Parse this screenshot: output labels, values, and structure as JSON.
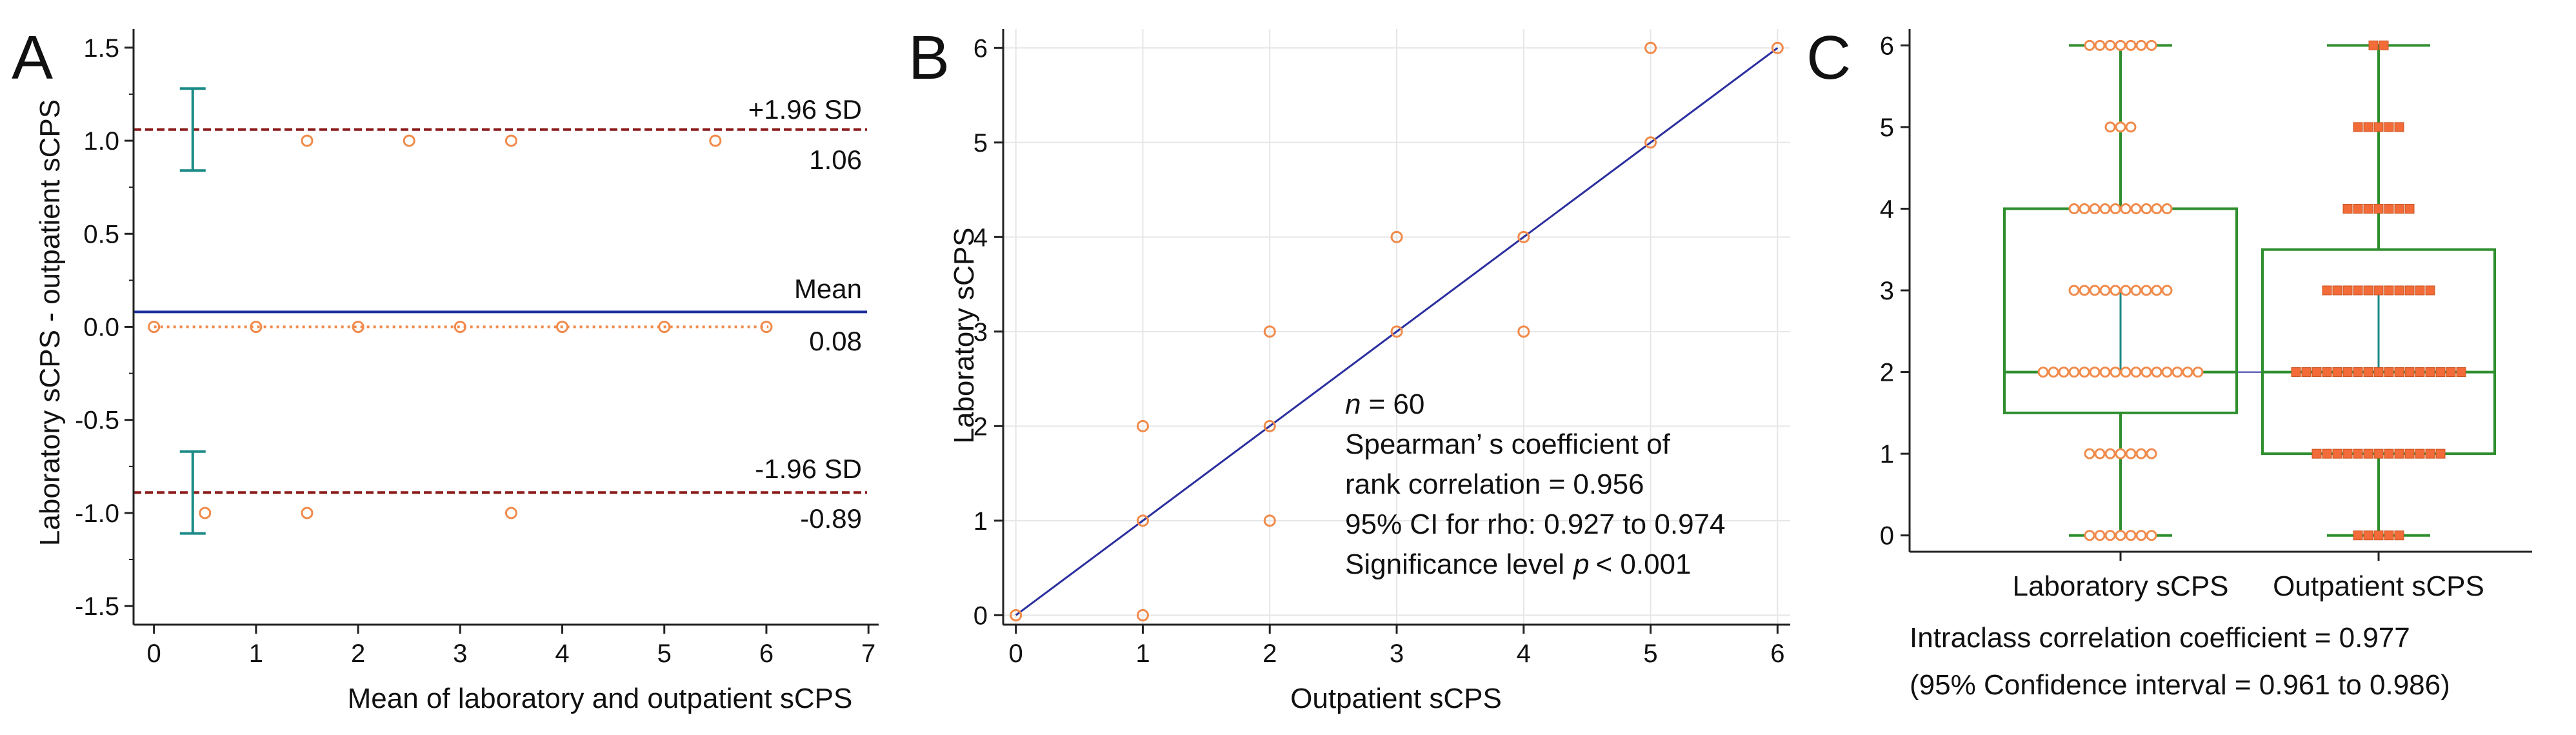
{
  "colors": {
    "axis": "#222222",
    "marker": "#f08a4b",
    "marker_fill_c2": "#f26b38",
    "limit_line": "#8b1a1a",
    "mean_line": "#1f2f9c",
    "ci_bar": "#1b8a86",
    "box": "#2f8f2f",
    "fit_line": "#2b2f9e",
    "grid": "#e6e6e6"
  },
  "chart_data": [
    {
      "type": "scatter",
      "panel_label": "A",
      "title": "",
      "xlabel": "Mean of laboratory and outpatient sCPS",
      "ylabel": "Laboratory sCPS - outpatient sCPS",
      "xlim": [
        -0.2,
        7.1
      ],
      "ylim": [
        -1.6,
        1.6
      ],
      "xticks": [
        0,
        1,
        2,
        3,
        4,
        5,
        6,
        7
      ],
      "yticks": [
        1.5,
        1.0,
        0.5,
        0.0,
        -0.5,
        -1.0,
        -1.5
      ],
      "ytick_labels": [
        "1.5",
        "1.0",
        "0.5",
        "0.0",
        "-0.5",
        "-1.0",
        "-1.5"
      ],
      "grid": false,
      "points": [
        {
          "x": 1.5,
          "y": 1.0
        },
        {
          "x": 2.5,
          "y": 1.0
        },
        {
          "x": 3.5,
          "y": 1.0
        },
        {
          "x": 5.5,
          "y": 1.0
        },
        {
          "x": 0,
          "y": 0.0
        },
        {
          "x": 1,
          "y": 0.0
        },
        {
          "x": 2,
          "y": 0.0
        },
        {
          "x": 3,
          "y": 0.0
        },
        {
          "x": 4,
          "y": 0.0
        },
        {
          "x": 5,
          "y": 0.0
        },
        {
          "x": 6,
          "y": 0.0
        },
        {
          "x": 0.5,
          "y": -1.0
        },
        {
          "x": 1.5,
          "y": -1.0
        },
        {
          "x": 3.5,
          "y": -1.0
        }
      ],
      "lines": [
        {
          "name": "upper-limit",
          "label": "+1.96 SD",
          "value_label": "1.06",
          "y": 1.06,
          "style": "dashed"
        },
        {
          "name": "mean",
          "label": "Mean",
          "value_label": "0.08",
          "y": 0.08,
          "style": "solid"
        },
        {
          "name": "lower-limit",
          "label": "-1.96 SD",
          "value_label": "-0.89",
          "y": -0.89,
          "style": "dashed"
        }
      ],
      "zero_line": {
        "y": 0.0,
        "style": "dotted"
      },
      "ci_bars": [
        {
          "x": 0.38,
          "low": 0.84,
          "high": 1.28
        },
        {
          "x": 0.38,
          "low": -1.11,
          "high": -0.67
        }
      ]
    },
    {
      "type": "scatter",
      "panel_label": "B",
      "title": "",
      "xlabel": "Outpatient sCPS",
      "ylabel": "Laboratory sCPS",
      "xlim": [
        -0.1,
        6.1
      ],
      "ylim": [
        -0.1,
        6.2
      ],
      "xticks": [
        0,
        1,
        2,
        3,
        4,
        5,
        6
      ],
      "yticks": [
        0,
        1,
        2,
        3,
        4,
        5,
        6
      ],
      "grid": true,
      "points": [
        {
          "x": 0,
          "y": 0
        },
        {
          "x": 1,
          "y": 0
        },
        {
          "x": 1,
          "y": 1
        },
        {
          "x": 1,
          "y": 2
        },
        {
          "x": 2,
          "y": 1
        },
        {
          "x": 2,
          "y": 2
        },
        {
          "x": 2,
          "y": 3
        },
        {
          "x": 3,
          "y": 3
        },
        {
          "x": 3,
          "y": 4
        },
        {
          "x": 4,
          "y": 3
        },
        {
          "x": 4,
          "y": 4
        },
        {
          "x": 5,
          "y": 5
        },
        {
          "x": 5,
          "y": 6
        },
        {
          "x": 6,
          "y": 6
        }
      ],
      "line_of_identity": {
        "from": [
          0,
          0
        ],
        "to": [
          6,
          6
        ]
      },
      "annotations": {
        "n_label": "n",
        "n_value": "= 60",
        "line1": "Spearman’ s coefficient of",
        "line2": "rank correlation = 0.956",
        "line3": "95% CI for rho: 0.927 to 0.974",
        "line4_prefix": "Significance level",
        "line4_p": "p",
        "line4_suffix": "< 0.001"
      }
    },
    {
      "type": "box",
      "panel_label": "C",
      "categories": [
        "Laboratory sCPS",
        "Outpatient sCPS"
      ],
      "ylim": [
        -0.2,
        6.2
      ],
      "yticks": [
        0,
        1,
        2,
        3,
        4,
        5,
        6
      ],
      "grid": false,
      "boxes": [
        {
          "name": "Laboratory sCPS",
          "min": 0,
          "q1": 1.5,
          "median": 2,
          "q3": 4,
          "max": 6,
          "counts": {
            "0": 7,
            "1": 7,
            "2": 16,
            "3": 10,
            "4": 10,
            "5": 3,
            "6": 7
          },
          "marker_filled": false
        },
        {
          "name": "Outpatient sCPS",
          "min": 0,
          "q1": 1,
          "median": 2,
          "q3": 3.5,
          "max": 6,
          "counts": {
            "0": 5,
            "1": 13,
            "2": 17,
            "3": 11,
            "4": 7,
            "5": 5,
            "6": 2
          },
          "marker_filled": true
        }
      ],
      "stat_line1": "Intraclass correlation coefficient = 0.977",
      "stat_line2": "(95% Confidence interval = 0.961 to 0.986)"
    }
  ]
}
